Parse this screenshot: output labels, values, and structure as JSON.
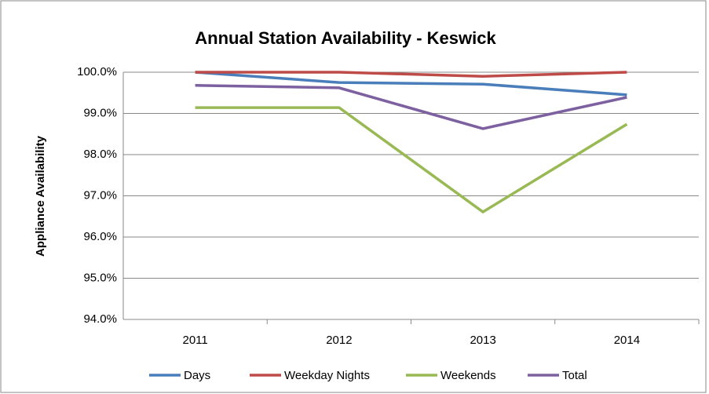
{
  "chart_data": {
    "type": "line",
    "title": "Annual Station Availability - Keswick",
    "y_label": "Appliance Availability",
    "categories": [
      "2011",
      "2012",
      "2013",
      "2014"
    ],
    "series": [
      {
        "name": "Days",
        "color": "#4a7ebb",
        "values": [
          100.0,
          99.75,
          99.71,
          99.45
        ]
      },
      {
        "name": "Weekday Nights",
        "color": "#be4b48",
        "values": [
          100.0,
          100.0,
          99.9,
          100.0
        ]
      },
      {
        "name": "Weekends",
        "color": "#98b954",
        "values": [
          99.14,
          99.14,
          96.61,
          98.74
        ]
      },
      {
        "name": "Total",
        "color": "#7d60a0",
        "values": [
          99.68,
          99.62,
          98.63,
          99.39
        ]
      }
    ],
    "ylim": [
      94,
      100
    ],
    "yticks": [
      {
        "value": 94,
        "label": "94.0%"
      },
      {
        "value": 95,
        "label": "95.0%"
      },
      {
        "value": 96,
        "label": "96.0%"
      },
      {
        "value": 97,
        "label": "97.0%"
      },
      {
        "value": 98,
        "label": "98.0%"
      },
      {
        "value": 99,
        "label": "99.0%"
      },
      {
        "value": 100,
        "label": "100.0%"
      }
    ],
    "grid": true
  }
}
